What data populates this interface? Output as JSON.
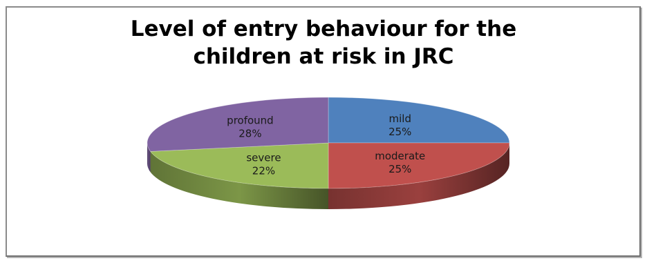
{
  "chart_data": {
    "type": "pie",
    "style": "3d",
    "title_lines": [
      "Level of entry behaviour for the",
      "children at risk in JRC"
    ],
    "legend": "none",
    "slices": [
      {
        "label": "mild",
        "value": 25,
        "percent_label": "25%",
        "color": "#4f81bd"
      },
      {
        "label": "moderate",
        "value": 25,
        "percent_label": "25%",
        "color": "#c0504d"
      },
      {
        "label": "severe",
        "value": 22,
        "percent_label": "22%",
        "color": "#9bbb59"
      },
      {
        "label": "profound",
        "value": 28,
        "percent_label": "28%",
        "color": "#8064a2"
      }
    ]
  }
}
